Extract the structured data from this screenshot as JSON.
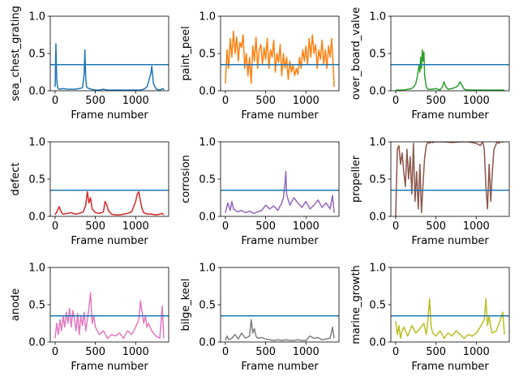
{
  "chart_data": [
    {
      "type": "line",
      "ylabel": "sea_chest_grating",
      "xlabel": "Frame number",
      "color": "#1f77b4",
      "threshold": 0.35,
      "threshold_color": "#1f77b4",
      "xlim": [
        -60,
        1410
      ],
      "ylim": [
        0,
        1
      ],
      "xticks": [
        0,
        500,
        1000
      ],
      "xtick_labels": [
        "0",
        "500",
        "1000"
      ],
      "yticks": [
        0,
        0.5,
        1
      ],
      "ytick_labels": [
        "0.0",
        "0.5",
        "1.0"
      ],
      "x": [
        0,
        10,
        20,
        30,
        40,
        60,
        100,
        150,
        200,
        250,
        300,
        340,
        360,
        370,
        380,
        390,
        400,
        420,
        450,
        500,
        550,
        600,
        650,
        700,
        750,
        800,
        850,
        900,
        950,
        1000,
        1050,
        1100,
        1140,
        1160,
        1180,
        1190,
        1200,
        1210,
        1220,
        1240,
        1260,
        1300,
        1340,
        1350
      ],
      "values": [
        0.05,
        0.63,
        0.15,
        0.05,
        0.03,
        0.02,
        0.03,
        0.02,
        0.02,
        0.02,
        0.03,
        0.04,
        0.22,
        0.55,
        0.18,
        0.06,
        0.04,
        0.03,
        0.02,
        0.01,
        0.01,
        0.02,
        0.01,
        0.01,
        0.01,
        0.01,
        0.01,
        0.01,
        0.01,
        0.01,
        0.01,
        0.02,
        0.05,
        0.12,
        0.2,
        0.24,
        0.33,
        0.22,
        0.1,
        0.05,
        0.02,
        0.01,
        0.03,
        0.01
      ]
    },
    {
      "type": "line",
      "ylabel": "paint_peel",
      "xlabel": "Frame number",
      "color": "#ff7f0e",
      "threshold": 0.35,
      "threshold_color": "#1f77b4",
      "xlim": [
        -60,
        1410
      ],
      "ylim": [
        0,
        1
      ],
      "xticks": [
        0,
        500,
        1000
      ],
      "xtick_labels": [
        "0",
        "500",
        "1000"
      ],
      "yticks": [
        0,
        0.5,
        1
      ],
      "ytick_labels": [
        "0.0",
        "0.5",
        "1.0"
      ],
      "x": [
        0,
        20,
        40,
        60,
        80,
        100,
        120,
        140,
        160,
        180,
        200,
        220,
        240,
        260,
        280,
        300,
        320,
        340,
        360,
        380,
        400,
        420,
        440,
        460,
        480,
        500,
        520,
        540,
        560,
        580,
        600,
        620,
        640,
        660,
        680,
        700,
        720,
        740,
        760,
        780,
        800,
        820,
        840,
        860,
        880,
        900,
        920,
        940,
        960,
        980,
        1000,
        1020,
        1040,
        1060,
        1080,
        1100,
        1120,
        1140,
        1160,
        1180,
        1200,
        1220,
        1240,
        1260,
        1280,
        1300,
        1320,
        1340,
        1350
      ],
      "values": [
        0.1,
        0.55,
        0.3,
        0.7,
        0.45,
        0.8,
        0.5,
        0.72,
        0.4,
        0.65,
        0.58,
        0.75,
        0.3,
        0.5,
        0.2,
        0.45,
        0.1,
        0.6,
        0.4,
        0.72,
        0.3,
        0.55,
        0.62,
        0.35,
        0.58,
        0.42,
        0.7,
        0.3,
        0.55,
        0.45,
        0.68,
        0.25,
        0.5,
        0.38,
        0.62,
        0.2,
        0.5,
        0.3,
        0.45,
        0.15,
        0.4,
        0.25,
        0.35,
        0.2,
        0.3,
        0.22,
        0.45,
        0.3,
        0.55,
        0.4,
        0.6,
        0.35,
        0.7,
        0.45,
        0.75,
        0.5,
        0.62,
        0.3,
        0.55,
        0.42,
        0.68,
        0.35,
        0.55,
        0.3,
        0.6,
        0.45,
        0.7,
        0.3,
        0.05
      ]
    },
    {
      "type": "line",
      "ylabel": "over_board_valve",
      "xlabel": "Frame number",
      "color": "#2ca02c",
      "threshold": 0.35,
      "threshold_color": "#1f77b4",
      "xlim": [
        -60,
        1410
      ],
      "ylim": [
        0,
        1
      ],
      "xticks": [
        0,
        500,
        1000
      ],
      "xtick_labels": [
        "0",
        "500",
        "1000"
      ],
      "yticks": [
        0,
        0.5,
        1
      ],
      "ytick_labels": [
        "0.0",
        "0.5",
        "1.0"
      ],
      "x": [
        0,
        50,
        100,
        150,
        200,
        230,
        250,
        270,
        290,
        300,
        310,
        320,
        330,
        340,
        350,
        360,
        380,
        400,
        450,
        500,
        550,
        580,
        600,
        620,
        650,
        700,
        750,
        780,
        800,
        850,
        900,
        1000,
        1100,
        1200,
        1300,
        1350
      ],
      "values": [
        0.01,
        0.01,
        0.01,
        0.02,
        0.03,
        0.06,
        0.1,
        0.2,
        0.35,
        0.25,
        0.45,
        0.3,
        0.55,
        0.4,
        0.52,
        0.2,
        0.05,
        0.02,
        0.02,
        0.03,
        0.01,
        0.05,
        0.12,
        0.06,
        0.02,
        0.03,
        0.05,
        0.08,
        0.12,
        0.02,
        0.01,
        0.01,
        0.01,
        0.01,
        0.01,
        0.01
      ]
    },
    {
      "type": "line",
      "ylabel": "defect",
      "xlabel": "Frame number",
      "color": "#d62728",
      "threshold": 0.35,
      "threshold_color": "#1f77b4",
      "xlim": [
        -60,
        1410
      ],
      "ylim": [
        0,
        1
      ],
      "xticks": [
        0,
        500,
        1000
      ],
      "xtick_labels": [
        "0",
        "500",
        "1000"
      ],
      "yticks": [
        0,
        0.5,
        1
      ],
      "ytick_labels": [
        "0.0",
        "0.5",
        "1.0"
      ],
      "x": [
        0,
        30,
        50,
        80,
        100,
        150,
        200,
        250,
        300,
        350,
        380,
        400,
        420,
        440,
        460,
        500,
        550,
        600,
        620,
        640,
        660,
        700,
        750,
        800,
        850,
        900,
        950,
        1000,
        1020,
        1040,
        1060,
        1080,
        1100,
        1150,
        1200,
        1250,
        1300,
        1330,
        1350
      ],
      "values": [
        0.02,
        0.08,
        0.13,
        0.05,
        0.03,
        0.04,
        0.05,
        0.03,
        0.04,
        0.06,
        0.15,
        0.33,
        0.18,
        0.25,
        0.1,
        0.05,
        0.04,
        0.06,
        0.2,
        0.16,
        0.08,
        0.03,
        0.02,
        0.02,
        0.03,
        0.04,
        0.06,
        0.2,
        0.3,
        0.33,
        0.2,
        0.1,
        0.05,
        0.03,
        0.03,
        0.02,
        0.03,
        0.04,
        0.02
      ]
    },
    {
      "type": "line",
      "ylabel": "corrosion",
      "xlabel": "Frame number",
      "color": "#9467bd",
      "threshold": 0.35,
      "threshold_color": "#1f77b4",
      "xlim": [
        -60,
        1410
      ],
      "ylim": [
        0,
        1
      ],
      "xticks": [
        0,
        500,
        1000
      ],
      "xtick_labels": [
        "0",
        "500",
        "1000"
      ],
      "yticks": [
        0,
        0.5,
        1
      ],
      "ytick_labels": [
        "0.0",
        "0.5",
        "1.0"
      ],
      "x": [
        0,
        30,
        60,
        80,
        100,
        150,
        200,
        250,
        300,
        350,
        400,
        450,
        500,
        550,
        600,
        650,
        700,
        720,
        740,
        750,
        760,
        780,
        800,
        850,
        900,
        950,
        1000,
        1050,
        1100,
        1150,
        1200,
        1250,
        1300,
        1330,
        1350
      ],
      "values": [
        0.05,
        0.18,
        0.08,
        0.2,
        0.1,
        0.06,
        0.08,
        0.05,
        0.07,
        0.04,
        0.06,
        0.08,
        0.15,
        0.1,
        0.14,
        0.08,
        0.18,
        0.25,
        0.45,
        0.6,
        0.3,
        0.22,
        0.15,
        0.25,
        0.18,
        0.12,
        0.2,
        0.1,
        0.15,
        0.22,
        0.12,
        0.18,
        0.1,
        0.28,
        0.05
      ]
    },
    {
      "type": "line",
      "ylabel": "propeller",
      "xlabel": "Frame number",
      "color": "#8c564b",
      "threshold": 0.35,
      "threshold_color": "#1f77b4",
      "xlim": [
        -60,
        1410
      ],
      "ylim": [
        0,
        1
      ],
      "xticks": [
        0,
        500,
        1000
      ],
      "xtick_labels": [
        "0",
        "500",
        "1000"
      ],
      "yticks": [
        0,
        0.5,
        1
      ],
      "ytick_labels": [
        "0.0",
        "0.5",
        "1.0"
      ],
      "x": [
        0,
        20,
        40,
        60,
        80,
        100,
        120,
        140,
        160,
        180,
        200,
        220,
        240,
        260,
        280,
        300,
        320,
        340,
        360,
        380,
        400,
        420,
        440,
        460,
        480,
        500,
        600,
        700,
        800,
        900,
        1000,
        1050,
        1080,
        1100,
        1120,
        1140,
        1160,
        1180,
        1200,
        1220,
        1240,
        1260,
        1280,
        1300,
        1350
      ],
      "values": [
        0.0,
        0.9,
        0.95,
        0.7,
        0.85,
        0.6,
        0.4,
        0.9,
        0.5,
        0.8,
        0.3,
        0.98,
        0.2,
        0.6,
        0.1,
        0.7,
        0.05,
        0.45,
        0.8,
        0.95,
        1.0,
        0.98,
        1.0,
        0.99,
        1.0,
        1.0,
        1.0,
        0.99,
        1.0,
        1.0,
        0.98,
        0.95,
        1.0,
        0.9,
        0.4,
        0.1,
        0.7,
        0.2,
        0.6,
        0.9,
        0.95,
        1.0,
        0.98,
        1.0,
        1.0
      ]
    },
    {
      "type": "line",
      "ylabel": "anode",
      "xlabel": "Frame number",
      "color": "#e377c2",
      "threshold": 0.35,
      "threshold_color": "#1f77b4",
      "xlim": [
        -60,
        1410
      ],
      "ylim": [
        0,
        1
      ],
      "xticks": [
        0,
        500,
        1000
      ],
      "xtick_labels": [
        "0",
        "500",
        "1000"
      ],
      "yticks": [
        0,
        0.5,
        1
      ],
      "ytick_labels": [
        "0.0",
        "0.5",
        "1.0"
      ],
      "x": [
        0,
        20,
        40,
        60,
        80,
        100,
        120,
        140,
        160,
        180,
        200,
        220,
        240,
        260,
        280,
        300,
        320,
        340,
        360,
        380,
        400,
        420,
        440,
        460,
        480,
        500,
        550,
        600,
        650,
        700,
        750,
        800,
        850,
        900,
        950,
        1000,
        1040,
        1060,
        1080,
        1100,
        1120,
        1140,
        1160,
        1200,
        1250,
        1300,
        1330,
        1350
      ],
      "values": [
        0.05,
        0.25,
        0.1,
        0.3,
        0.15,
        0.35,
        0.2,
        0.4,
        0.25,
        0.45,
        0.2,
        0.42,
        0.3,
        0.15,
        0.38,
        0.1,
        0.35,
        0.22,
        0.4,
        0.15,
        0.3,
        0.45,
        0.66,
        0.25,
        0.35,
        0.2,
        0.1,
        0.15,
        0.05,
        0.1,
        0.08,
        0.12,
        0.05,
        0.15,
        0.1,
        0.2,
        0.3,
        0.55,
        0.4,
        0.25,
        0.35,
        0.2,
        0.25,
        0.15,
        0.08,
        0.05,
        0.48,
        0.05
      ]
    },
    {
      "type": "line",
      "ylabel": "bilge_keel",
      "xlabel": "Frame number",
      "color": "#7f7f7f",
      "threshold": 0.35,
      "threshold_color": "#1f77b4",
      "xlim": [
        -60,
        1410
      ],
      "ylim": [
        0,
        1
      ],
      "xticks": [
        0,
        500,
        1000
      ],
      "xtick_labels": [
        "0",
        "500",
        "1000"
      ],
      "yticks": [
        0,
        0.5,
        1
      ],
      "ytick_labels": [
        "0.0",
        "0.5",
        "1.0"
      ],
      "x": [
        0,
        20,
        40,
        80,
        120,
        160,
        200,
        250,
        300,
        320,
        340,
        360,
        380,
        400,
        450,
        500,
        550,
        600,
        650,
        700,
        750,
        800,
        850,
        900,
        950,
        1000,
        1050,
        1100,
        1150,
        1200,
        1250,
        1300,
        1330,
        1350
      ],
      "values": [
        0.02,
        0.08,
        0.03,
        0.05,
        0.1,
        0.04,
        0.12,
        0.05,
        0.08,
        0.3,
        0.12,
        0.18,
        0.08,
        0.05,
        0.06,
        0.04,
        0.03,
        0.02,
        0.03,
        0.02,
        0.03,
        0.02,
        0.02,
        0.03,
        0.02,
        0.02,
        0.08,
        0.05,
        0.06,
        0.03,
        0.04,
        0.05,
        0.2,
        0.05
      ]
    },
    {
      "type": "line",
      "ylabel": "marine_growth",
      "xlabel": "Frame number",
      "color": "#bcbd22",
      "threshold": 0.35,
      "threshold_color": "#1f77b4",
      "xlim": [
        -60,
        1410
      ],
      "ylim": [
        0,
        1
      ],
      "xticks": [
        0,
        500,
        1000
      ],
      "xtick_labels": [
        "0",
        "500",
        "1000"
      ],
      "yticks": [
        0,
        0.5,
        1
      ],
      "ytick_labels": [
        "0.0",
        "0.5",
        "1.0"
      ],
      "x": [
        0,
        20,
        40,
        60,
        80,
        100,
        150,
        200,
        250,
        300,
        350,
        380,
        400,
        420,
        440,
        460,
        500,
        550,
        600,
        650,
        700,
        750,
        800,
        850,
        900,
        950,
        1000,
        1050,
        1100,
        1120,
        1140,
        1160,
        1180,
        1200,
        1250,
        1300,
        1330,
        1350
      ],
      "values": [
        0.28,
        0.1,
        0.22,
        0.05,
        0.15,
        0.2,
        0.08,
        0.22,
        0.12,
        0.18,
        0.25,
        0.1,
        0.3,
        0.58,
        0.2,
        0.12,
        0.08,
        0.15,
        0.05,
        0.12,
        0.08,
        0.15,
        0.1,
        0.05,
        0.1,
        0.08,
        0.12,
        0.2,
        0.3,
        0.58,
        0.22,
        0.35,
        0.2,
        0.12,
        0.15,
        0.3,
        0.4,
        0.1
      ]
    }
  ]
}
